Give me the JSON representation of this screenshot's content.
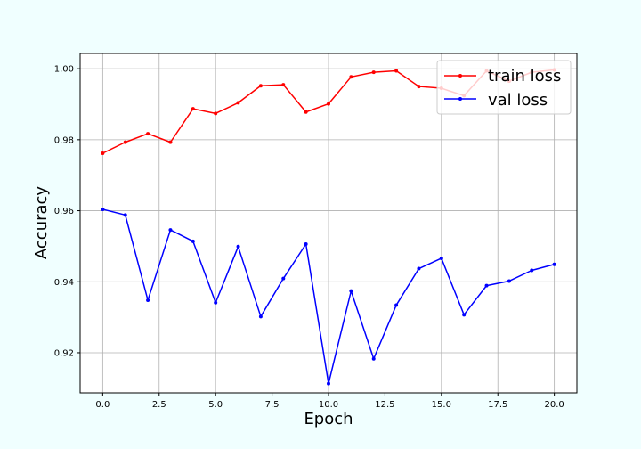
{
  "chart_data": {
    "type": "line",
    "title": "",
    "xlabel": "Epoch",
    "ylabel": "Accuracy",
    "xlim": [
      -1,
      21
    ],
    "ylim": [
      0.9087,
      1.0043
    ],
    "grid": true,
    "legend_position": "top-right",
    "x_ticks": [
      0.0,
      2.5,
      5.0,
      7.5,
      10.0,
      12.5,
      15.0,
      17.5,
      20.0
    ],
    "x_tick_labels": [
      "0.0",
      "2.5",
      "5.0",
      "7.5",
      "10.0",
      "12.5",
      "15.0",
      "17.5",
      "20.0"
    ],
    "y_ticks": [
      0.92,
      0.94,
      0.96,
      0.98,
      1.0
    ],
    "y_tick_labels": [
      "0.92",
      "0.94",
      "0.96",
      "0.98",
      "1.00"
    ],
    "x": [
      0,
      1,
      2,
      3,
      4,
      5,
      6,
      7,
      8,
      9,
      10,
      11,
      12,
      13,
      14,
      15,
      16,
      17,
      18,
      19,
      20
    ],
    "series": [
      {
        "name": "train loss",
        "color": "#ff0000",
        "values": [
          0.9762,
          0.9793,
          0.9817,
          0.9793,
          0.9887,
          0.9874,
          0.9904,
          0.9952,
          0.9955,
          0.9878,
          0.9901,
          0.9977,
          0.999,
          0.9994,
          0.995,
          0.9945,
          0.9924,
          0.9994,
          0.9965,
          0.999,
          0.9997
        ]
      },
      {
        "name": "val loss",
        "color": "#0000ff",
        "values": [
          0.9604,
          0.9588,
          0.9348,
          0.9546,
          0.9514,
          0.9341,
          0.9499,
          0.9302,
          0.9409,
          0.9506,
          0.9113,
          0.9374,
          0.9183,
          0.9334,
          0.9437,
          0.9466,
          0.9307,
          0.9389,
          0.9402,
          0.9432,
          0.9449
        ]
      }
    ]
  }
}
